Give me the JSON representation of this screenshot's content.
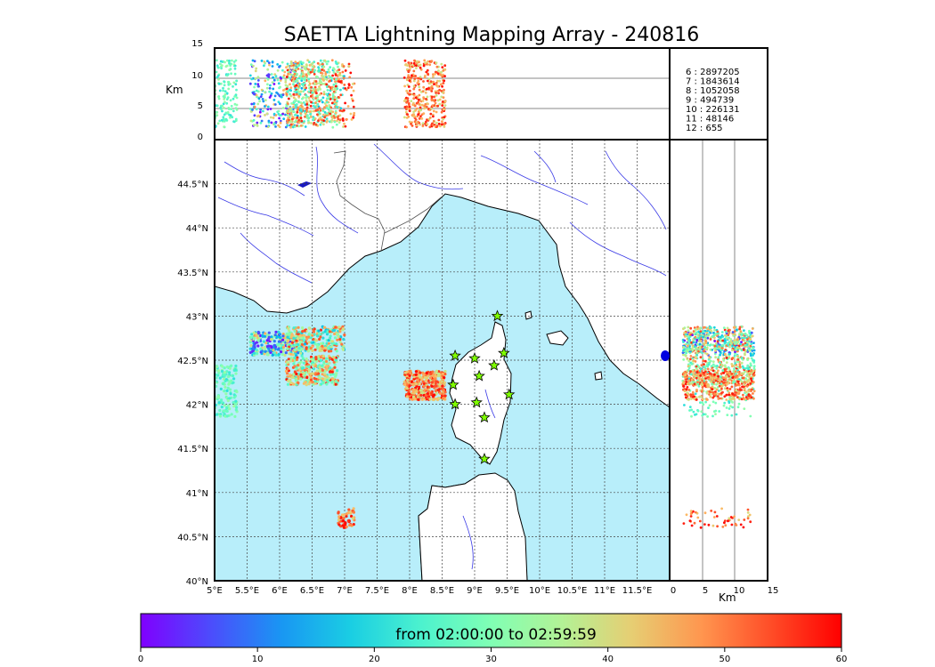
{
  "chart_data": {
    "type": "scatter",
    "title": "SAETTA Lightning Mapping Array - 240816",
    "colormap": "rainbow",
    "colorbar": {
      "label": "from 02:00:00 to 02:59:59",
      "range": [
        0,
        60
      ],
      "ticks": [
        "0",
        "10",
        "20",
        "30",
        "40",
        "50",
        "60"
      ]
    },
    "map": {
      "lon_range": [
        5.0,
        12.0
      ],
      "lat_range": [
        40.0,
        45.0
      ],
      "lon_ticks": [
        "5°E",
        "5.5°E",
        "6°E",
        "6.5°E",
        "7°E",
        "7.5°E",
        "8°E",
        "8.5°E",
        "9°E",
        "9.5°E",
        "10°E",
        "10.5°E",
        "11°E",
        "11.5°E"
      ],
      "lat_ticks": [
        "40°N",
        "40.5°N",
        "41°N",
        "41.5°N",
        "42°N",
        "42.5°N",
        "43°N",
        "43.5°N",
        "44°N",
        "44.5°N"
      ],
      "sea_color": "#b8eefa",
      "grid": true,
      "stations": [
        {
          "lon": 9.35,
          "lat": 43.0
        },
        {
          "lon": 8.7,
          "lat": 42.55
        },
        {
          "lon": 9.0,
          "lat": 42.52
        },
        {
          "lon": 9.45,
          "lat": 42.58
        },
        {
          "lon": 9.3,
          "lat": 42.44
        },
        {
          "lon": 9.07,
          "lat": 42.32
        },
        {
          "lon": 8.67,
          "lat": 42.22
        },
        {
          "lon": 9.53,
          "lat": 42.11
        },
        {
          "lon": 8.7,
          "lat": 42.0
        },
        {
          "lon": 9.03,
          "lat": 42.02
        },
        {
          "lon": 9.15,
          "lat": 41.85
        },
        {
          "lon": 9.15,
          "lat": 41.38
        }
      ]
    },
    "altitude_panel": {
      "ylabel": "Km",
      "ylim": [
        0,
        15
      ],
      "yticks": [
        "0",
        "5",
        "10",
        "15"
      ]
    },
    "side_panel": {
      "xlabel": "Km",
      "xlim": [
        0,
        15
      ],
      "xticks": [
        "0",
        "5",
        "10",
        "15"
      ]
    },
    "counts": [
      {
        "label": "6  :  2897205",
        "color": "#000000"
      },
      {
        "label": "7  :  1843614",
        "color": "#ff0000"
      },
      {
        "label": "8  :  1052058",
        "color": "#000000"
      },
      {
        "label": "9  :    494739",
        "color": "#000000"
      },
      {
        "label": "10  :    226131",
        "color": "#000000"
      },
      {
        "label": "11  :      48146",
        "color": "#000000"
      },
      {
        "label": "12  :        655",
        "color": "#000000"
      }
    ],
    "clusters": [
      {
        "lon_range": [
          5.55,
          6.35
        ],
        "lat_range": [
          42.55,
          42.82
        ],
        "time": [
          0,
          48
        ],
        "n": 280
      },
      {
        "lon_range": [
          6.1,
          7.0
        ],
        "lat_range": [
          42.6,
          42.88
        ],
        "time": [
          15,
          58
        ],
        "n": 260
      },
      {
        "lon_range": [
          6.1,
          6.9
        ],
        "lat_range": [
          42.22,
          42.55
        ],
        "time": [
          22,
          60
        ],
        "n": 330
      },
      {
        "lon_range": [
          5.0,
          5.35
        ],
        "lat_range": [
          41.85,
          42.45
        ],
        "time": [
          20,
          34
        ],
        "n": 140
      },
      {
        "lon_range": [
          7.92,
          8.55
        ],
        "lat_range": [
          42.05,
          42.38
        ],
        "time": [
          38,
          60
        ],
        "n": 360
      },
      {
        "lon_range": [
          6.9,
          7.15
        ],
        "lat_range": [
          40.6,
          40.82
        ],
        "time": [
          40,
          60
        ],
        "n": 50
      }
    ]
  }
}
